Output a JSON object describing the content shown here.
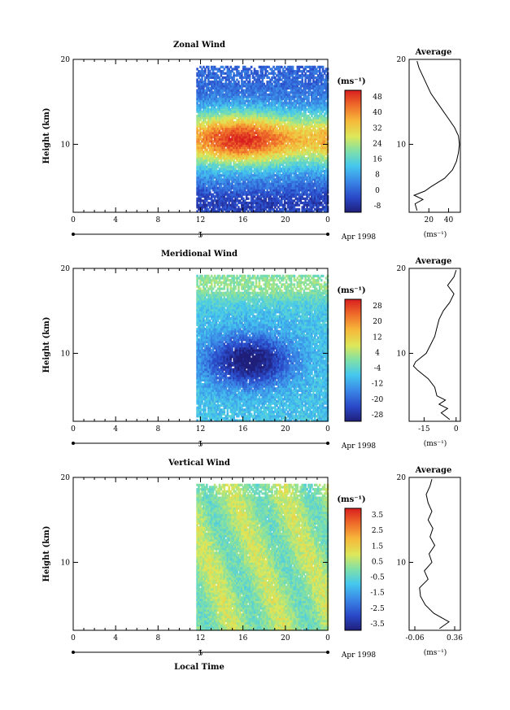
{
  "chart_data": [
    {
      "type": "heatmap",
      "id": "zonal",
      "title": "Zonal Wind",
      "ylabel": "Height (km)",
      "xlabel": "",
      "x_ticks": [
        "0",
        "4",
        "8",
        "12",
        "16",
        "20",
        "0"
      ],
      "y_ticks": [
        "20",
        "10"
      ],
      "xlim": [
        0,
        24
      ],
      "ylim": [
        2,
        20
      ],
      "date_tick": "5",
      "date_label": "Apr 1998",
      "data_start_hour": 11.6,
      "colorbar": {
        "unit": "(ms⁻¹)",
        "labels": [
          "48",
          "40",
          "32",
          "24",
          "16",
          "8",
          "0",
          "-8"
        ],
        "range": [
          -12,
          52
        ]
      },
      "profile": {
        "title": "Average",
        "y_ticks": [
          "20",
          "10"
        ],
        "x_ticks": [
          "20",
          "40"
        ],
        "x_tick_values": [
          20,
          40
        ],
        "xlim": [
          0,
          52
        ],
        "xlabel": "(ms⁻¹)",
        "heights": [
          2.2,
          3,
          3.5,
          4,
          4.5,
          5,
          6,
          7,
          8,
          9,
          10,
          11,
          12,
          13,
          14,
          15,
          16,
          17,
          18,
          19,
          19.8
        ],
        "values": [
          8,
          6,
          14,
          5,
          16,
          22,
          36,
          44,
          48,
          50,
          51,
          50,
          46,
          40,
          34,
          28,
          22,
          18,
          14,
          10,
          8
        ]
      }
    },
    {
      "type": "heatmap",
      "id": "meridional",
      "title": "Meridional Wind",
      "ylabel": "Height (km)",
      "xlabel": "",
      "x_ticks": [
        "0",
        "4",
        "8",
        "12",
        "16",
        "20",
        "0"
      ],
      "y_ticks": [
        "20",
        "10"
      ],
      "xlim": [
        0,
        24
      ],
      "ylim": [
        2,
        20
      ],
      "date_tick": "5",
      "date_label": "Apr 1998",
      "data_start_hour": 11.6,
      "colorbar": {
        "unit": "(ms⁻¹)",
        "labels": [
          "28",
          "20",
          "12",
          "4",
          "-4",
          "-12",
          "-20",
          "-28"
        ],
        "range": [
          -32,
          32
        ]
      },
      "profile": {
        "title": "Average",
        "y_ticks": [
          "20",
          "10"
        ],
        "x_ticks": [
          "-15",
          "0"
        ],
        "x_tick_values": [
          -15,
          0
        ],
        "xlim": [
          -22,
          2
        ],
        "xlabel": "(ms⁻¹)",
        "heights": [
          2.2,
          3,
          3.5,
          4,
          4.5,
          5,
          6,
          7,
          8,
          8.5,
          9,
          10,
          11,
          12,
          13,
          14,
          15,
          16,
          17,
          18,
          19,
          19.8
        ],
        "values": [
          -3,
          -7,
          -4,
          -8,
          -5,
          -9,
          -10,
          -13,
          -18,
          -20,
          -19,
          -14,
          -12,
          -10,
          -9,
          -8,
          -6,
          -3,
          -1,
          -4,
          -1,
          0
        ]
      }
    },
    {
      "type": "heatmap",
      "id": "vertical",
      "title": "Vertical Wind",
      "ylabel": "Height (km)",
      "xlabel": "Local Time",
      "x_ticks": [
        "0",
        "4",
        "8",
        "12",
        "16",
        "20",
        "0"
      ],
      "y_ticks": [
        "20",
        "10"
      ],
      "xlim": [
        0,
        24
      ],
      "ylim": [
        2,
        20
      ],
      "date_tick": "5",
      "date_label": "Apr 1998",
      "data_start_hour": 11.6,
      "colorbar": {
        "unit": "(ms⁻¹)",
        "labels": [
          "3.5",
          "2.5",
          "1.5",
          "0.5",
          "-0.5",
          "-1.5",
          "-2.5",
          "-3.5"
        ],
        "range": [
          -4,
          4
        ]
      },
      "profile": {
        "title": "Average",
        "y_ticks": [
          "20",
          "10"
        ],
        "x_ticks": [
          "-0.06",
          "0.36"
        ],
        "x_tick_values": [
          -0.06,
          0.36
        ],
        "xlim": [
          -0.12,
          0.42
        ],
        "xlabel": "(ms⁻¹)",
        "heights": [
          2.2,
          3,
          4,
          5,
          6,
          7,
          8,
          9,
          10,
          11,
          12,
          13,
          14,
          15,
          16,
          17,
          18,
          19,
          19.8
        ],
        "values": [
          0.2,
          0.3,
          0.14,
          0.05,
          0.0,
          -0.01,
          0.08,
          0.04,
          0.12,
          0.09,
          0.15,
          0.1,
          0.13,
          0.08,
          0.12,
          0.08,
          0.06,
          0.1,
          0.12
        ]
      }
    }
  ],
  "colors": {
    "colorbar_scale": [
      "#1f1f7a",
      "#2a48c8",
      "#3a86e6",
      "#45c8ee",
      "#7fe0a8",
      "#dde85a",
      "#f6b83a",
      "#ee6a2a",
      "#d81e1e"
    ],
    "grid_line": "#000000",
    "background": "#ffffff"
  }
}
